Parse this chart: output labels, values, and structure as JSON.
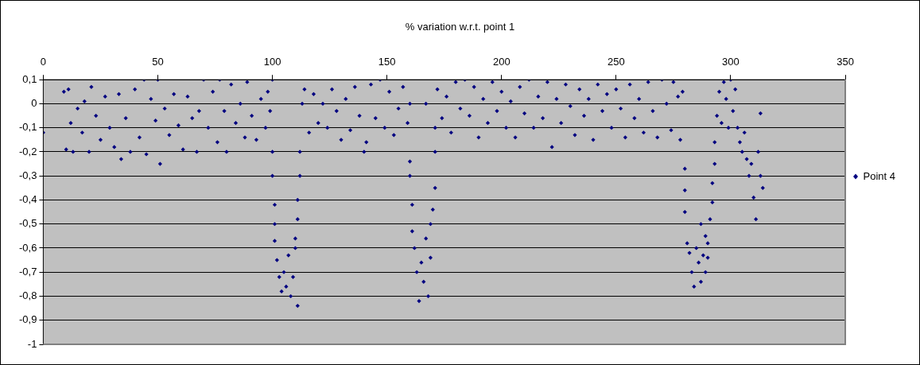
{
  "chart_data": {
    "type": "scatter",
    "title": "% variation w.r.t. point 1",
    "xlim": [
      0,
      350
    ],
    "xticks": [
      0,
      50,
      100,
      150,
      200,
      250,
      300,
      350
    ],
    "ylim": [
      -1,
      0.1
    ],
    "yticks": [
      {
        "value": 0.1,
        "label": "0,1"
      },
      0,
      {
        "value": -0.1,
        "label": "-0,1"
      },
      {
        "value": -0.2,
        "label": "-0,2"
      },
      {
        "value": -0.3,
        "label": "-0,3"
      },
      {
        "value": -0.4,
        "label": "-0,4"
      },
      {
        "value": -0.5,
        "label": "-0,5"
      },
      {
        "value": -0.6,
        "label": "-0,6"
      },
      {
        "value": -0.7,
        "label": "-0,7"
      },
      {
        "value": -0.8,
        "label": "-0,8"
      },
      {
        "value": -0.9,
        "label": "-0,9"
      },
      -1
    ],
    "grid": "y",
    "legend": "right",
    "marker": "diamond",
    "series": [
      {
        "name": "Point 4",
        "color": "#000080",
        "x": [
          0,
          9,
          10,
          11,
          12,
          13,
          15,
          17,
          18,
          20,
          21,
          23,
          25,
          27,
          29,
          31,
          33,
          34,
          36,
          38,
          40,
          42,
          44,
          45,
          47,
          49,
          50,
          51,
          53,
          55,
          57,
          59,
          61,
          63,
          65,
          67,
          68,
          70,
          72,
          74,
          76,
          77,
          79,
          80,
          82,
          84,
          86,
          88,
          89,
          91,
          93,
          95,
          97,
          98,
          99,
          100,
          100,
          100,
          101,
          101,
          101,
          102,
          103,
          104,
          105,
          106,
          107,
          108,
          109,
          110,
          111,
          110,
          111,
          111,
          112,
          112,
          113,
          114,
          116,
          118,
          120,
          122,
          124,
          126,
          128,
          130,
          132,
          134,
          136,
          138,
          140,
          141,
          143,
          145,
          147,
          149,
          151,
          153,
          155,
          157,
          159,
          160,
          160,
          160,
          161,
          161,
          162,
          163,
          164,
          165,
          166,
          167,
          168,
          169,
          169,
          170,
          171,
          171,
          171,
          167,
          172,
          174,
          176,
          178,
          180,
          182,
          184,
          186,
          188,
          190,
          192,
          194,
          196,
          198,
          200,
          202,
          204,
          206,
          208,
          210,
          212,
          214,
          216,
          218,
          220,
          222,
          224,
          226,
          228,
          230,
          232,
          234,
          236,
          238,
          240,
          242,
          244,
          246,
          248,
          250,
          252,
          254,
          256,
          258,
          260,
          262,
          264,
          266,
          268,
          270,
          272,
          274,
          275,
          277,
          278,
          279,
          280,
          280,
          280,
          281,
          282,
          283,
          284,
          285,
          286,
          287,
          287,
          288,
          289,
          289,
          290,
          290,
          291,
          292,
          292,
          293,
          293,
          294,
          295,
          296,
          297,
          298,
          299,
          300,
          301,
          302,
          303,
          304,
          305,
          306,
          307,
          308,
          309,
          310,
          311,
          312,
          313,
          313,
          314
        ],
        "values": [
          -0.12,
          0.05,
          -0.19,
          0.06,
          -0.08,
          -0.2,
          -0.02,
          -0.12,
          0.01,
          -0.2,
          0.07,
          -0.05,
          -0.15,
          0.03,
          -0.1,
          -0.18,
          0.04,
          -0.23,
          -0.06,
          -0.2,
          0.06,
          -0.14,
          0.1,
          -0.21,
          0.02,
          -0.07,
          0.1,
          -0.25,
          -0.02,
          -0.13,
          0.04,
          -0.09,
          -0.19,
          0.03,
          -0.06,
          -0.2,
          -0.03,
          0.1,
          -0.1,
          0.05,
          -0.16,
          0.1,
          -0.03,
          -0.2,
          0.08,
          -0.08,
          0,
          -0.14,
          0.09,
          -0.05,
          -0.15,
          0.02,
          -0.1,
          0.05,
          -0.03,
          0.1,
          -0.2,
          -0.3,
          -0.42,
          -0.5,
          -0.57,
          -0.65,
          -0.72,
          -0.78,
          -0.7,
          -0.76,
          -0.63,
          -0.8,
          -0.72,
          -0.6,
          -0.84,
          -0.56,
          -0.48,
          -0.4,
          -0.3,
          -0.2,
          0,
          0.06,
          -0.12,
          0.04,
          -0.08,
          0,
          -0.1,
          0.06,
          -0.03,
          -0.15,
          0.02,
          -0.11,
          0.07,
          -0.05,
          -0.2,
          -0.16,
          0.08,
          -0.06,
          0.1,
          -0.1,
          0.05,
          -0.13,
          -0.02,
          0.07,
          -0.08,
          0,
          -0.24,
          -0.3,
          -0.42,
          -0.53,
          -0.6,
          -0.7,
          -0.82,
          -0.66,
          -0.74,
          -0.56,
          -0.8,
          -0.64,
          -0.5,
          -0.44,
          -0.35,
          -0.2,
          -0.1,
          0,
          0.06,
          -0.06,
          0.03,
          -0.12,
          0.09,
          -0.02,
          0.1,
          -0.05,
          0.07,
          -0.14,
          0.02,
          -0.08,
          0.09,
          -0.03,
          0.05,
          -0.1,
          0.01,
          -0.14,
          0.07,
          -0.04,
          0.1,
          -0.1,
          0.03,
          -0.06,
          0.09,
          -0.18,
          0.02,
          -0.08,
          0.08,
          -0.01,
          -0.13,
          0.06,
          -0.05,
          0.02,
          -0.15,
          0.08,
          -0.03,
          0.04,
          -0.1,
          0.06,
          -0.02,
          -0.14,
          0.08,
          -0.06,
          0.02,
          -0.12,
          0.09,
          -0.03,
          -0.14,
          0.1,
          0,
          -0.11,
          0.09,
          0.03,
          -0.15,
          0.05,
          -0.27,
          -0.36,
          -0.45,
          -0.58,
          -0.62,
          -0.7,
          -0.76,
          -0.6,
          -0.66,
          -0.5,
          -0.74,
          -0.63,
          -0.7,
          -0.55,
          -0.58,
          -0.64,
          -0.48,
          -0.41,
          -0.33,
          -0.25,
          -0.16,
          -0.05,
          0.05,
          -0.08,
          0.09,
          0.02,
          -0.1,
          0.1,
          -0.03,
          0.06,
          -0.1,
          -0.16,
          -0.2,
          -0.12,
          -0.23,
          -0.3,
          -0.25,
          -0.39,
          -0.48,
          -0.2,
          -0.04,
          -0.3,
          -0.35
        ]
      }
    ]
  }
}
